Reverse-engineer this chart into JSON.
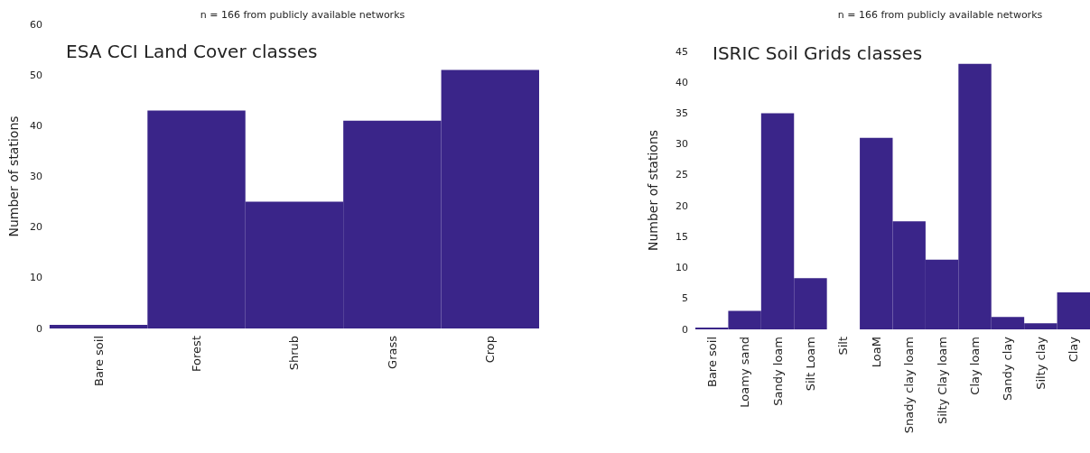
{
  "chart_data": [
    {
      "type": "bar",
      "title": "ESA CCI Land Cover classes",
      "subtitle": "n = 166 from publicly available networks",
      "ylabel": "Number of stations",
      "categories": [
        "Bare soil",
        "Forest",
        "Shrub",
        "Grass",
        "Crop"
      ],
      "series": [
        {
          "color": "#3a2589",
          "values": [
            0.7,
            43,
            25,
            41,
            51
          ]
        }
      ],
      "ylim": [
        0,
        60
      ],
      "yticks": [
        0,
        10,
        20,
        30,
        40,
        50,
        60
      ]
    },
    {
      "type": "bar",
      "title": "ISRIC Soil Grids classes",
      "subtitle": "n = 166 from publicly available networks",
      "ylabel": "Number of stations",
      "categories": [
        "Bare soil",
        "Loamy sand",
        "Sandy loam",
        "Silt Loam",
        "Silt",
        "LoaM",
        "Snady clay loam",
        "Silty Clay loam",
        "Clay loam",
        "Sandy clay",
        "Silty clay",
        "Clay"
      ],
      "series": [
        {
          "color": "#3a2589",
          "values": [
            0.3,
            3,
            35,
            8.3,
            0,
            31,
            17.5,
            11.3,
            43,
            2,
            1,
            6
          ]
        }
      ],
      "ylim": [
        0,
        45
      ],
      "yticks": [
        0,
        5,
        10,
        15,
        20,
        25,
        30,
        35,
        40,
        45
      ]
    }
  ]
}
